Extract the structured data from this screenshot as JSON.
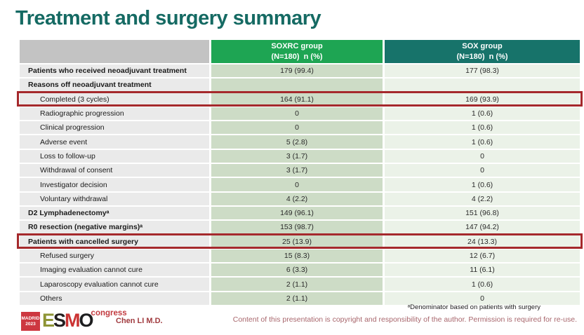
{
  "slide": {
    "title": "Treatment and surgery summary",
    "presenter": "Chen LI M.D.",
    "footnote": "ᵃDenominator based on patients with surgery",
    "copyright": "Content of this presentation is copyright and responsibility of the author. Permission is required for re-use."
  },
  "logo": {
    "badge_line1": "MADRID",
    "badge_line2": "2023",
    "letter1": "E",
    "letter2": "S",
    "letter3": "M",
    "letter4": "O",
    "congress": "congress"
  },
  "colors": {
    "title_teal": "#156a63",
    "header_green": "#1ea553",
    "header_teal": "#17736a",
    "highlight_red": "#a5292c",
    "soxrc_cell_bg": "#cddcc6",
    "sox_cell_bg": "#ebf2e8",
    "label_cell_bg": "#eaeaea"
  },
  "table": {
    "header": {
      "soxrc_line1": "SOXRC group",
      "soxrc_line2": "(N=180)  n (%)",
      "sox_line1": "SOX group",
      "sox_line2": "(N=180)  n (%)"
    },
    "rows": [
      {
        "label": "Patients who received neoadjuvant treatment",
        "soxrc": "179 (99.4)",
        "sox": "177 (98.3)"
      },
      {
        "label": "Reasons off neoadjuvant treatment",
        "soxrc": "",
        "sox": ""
      },
      {
        "label": "Completed (3 cycles)",
        "soxrc": "164 (91.1)",
        "sox": "169 (93.9)"
      },
      {
        "label": "Radiographic progression",
        "soxrc": "0",
        "sox": "1 (0.6)"
      },
      {
        "label": "Clinical progression",
        "soxrc": "0",
        "sox": "1 (0.6)"
      },
      {
        "label": "Adverse event",
        "soxrc": "5 (2.8)",
        "sox": "1 (0.6)"
      },
      {
        "label": "Loss to follow-up",
        "soxrc": "3 (1.7)",
        "sox": "0"
      },
      {
        "label": "Withdrawal of consent",
        "soxrc": "3 (1.7)",
        "sox": "0"
      },
      {
        "label": "Investigator decision",
        "soxrc": "0",
        "sox": "1 (0.6)"
      },
      {
        "label": "Voluntary withdrawal",
        "soxrc": "4 (2.2)",
        "sox": "4 (2.2)"
      },
      {
        "label": "D2 Lymphadenectomyᵃ",
        "soxrc": "149 (96.1)",
        "sox": "151 (96.8)"
      },
      {
        "label": "R0 resection (negative margins)ᵃ",
        "soxrc": "153 (98.7)",
        "sox": "147 (94.2)"
      },
      {
        "label": "Patients with cancelled surgery",
        "soxrc": "25 (13.9)",
        "sox": "24 (13.3)"
      },
      {
        "label": "Refused surgery",
        "soxrc": "15 (8.3)",
        "sox": "12 (6.7)"
      },
      {
        "label": "Imaging evaluation cannot cure",
        "soxrc": "6 (3.3)",
        "sox": "11 (6.1)"
      },
      {
        "label": "Laparoscopy evaluation cannot cure",
        "soxrc": "2 (1.1)",
        "sox": "1 (0.6)"
      },
      {
        "label": "Others",
        "soxrc": "2 (1.1)",
        "sox": "0"
      }
    ]
  }
}
